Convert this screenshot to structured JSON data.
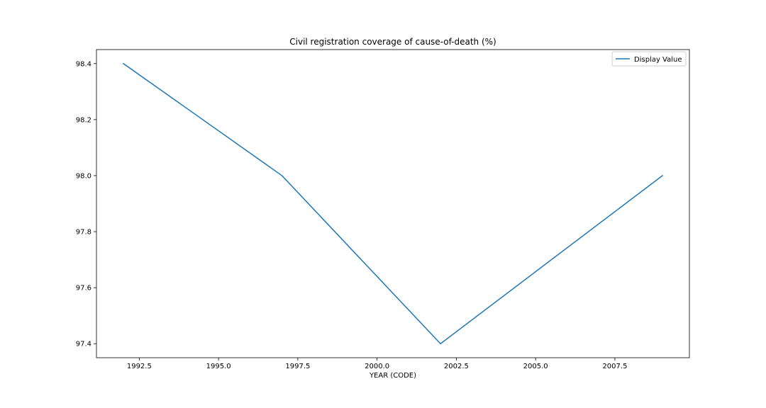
{
  "chart_data": {
    "type": "line",
    "title": "Civil registration coverage of cause-of-death (%)",
    "xlabel": "YEAR (CODE)",
    "ylabel": "",
    "x": [
      1992,
      1997,
      2002,
      2009
    ],
    "series": [
      {
        "name": "Display Value",
        "values": [
          98.4,
          98.0,
          97.4,
          98.0
        ],
        "color": "#1f77b4"
      }
    ],
    "xlim": [
      1991.15,
      2009.85
    ],
    "ylim": [
      97.35,
      98.45
    ],
    "xticks": [
      1992.5,
      1995.0,
      1997.5,
      2000.0,
      2002.5,
      2005.0,
      2007.5
    ],
    "xtick_labels": [
      "1992.5",
      "1995.0",
      "1997.5",
      "2000.0",
      "2002.5",
      "2005.0",
      "2007.5"
    ],
    "yticks": [
      97.4,
      97.6,
      97.8,
      98.0,
      98.2,
      98.4
    ],
    "ytick_labels": [
      "97.4",
      "97.6",
      "97.8",
      "98.0",
      "98.2",
      "98.4"
    ],
    "grid": false,
    "legend_position": "top-right"
  }
}
